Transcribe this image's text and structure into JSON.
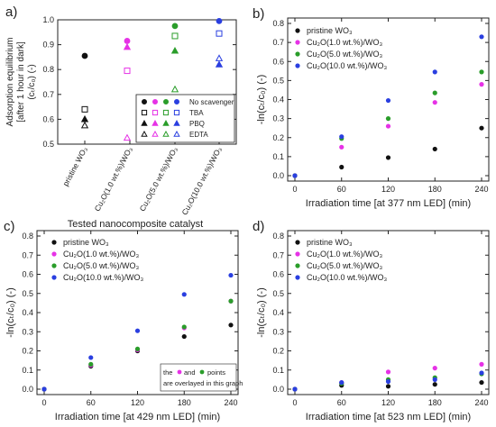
{
  "colors": {
    "black": "#111111",
    "magenta": "#e632e6",
    "green": "#2a9d2a",
    "blue": "#2a3fe0"
  },
  "chart_data": [
    {
      "id": "a",
      "type": "scatter",
      "panel_label": "a)",
      "ylabel_line1": "Adsorption equilibrium",
      "ylabel_line2": "[after 1 hour in dark]",
      "ylabel_line3": "(cₜ/c₀) (-)",
      "xlabel": "Tested nanocomposite catalyst",
      "ylim": [
        0.5,
        1.0
      ],
      "yticks": [
        "0.5",
        "0.6",
        "0.7",
        "0.8",
        "0.9",
        "1.0"
      ],
      "categories": [
        "pristine WO₃",
        "Cu₂O(1.0 wt.%)/WO₃",
        "Cu₂O(5.0 wt.%)/WO₃",
        "Cu₂O(10.0 wt.%)/WO₃"
      ],
      "series": [
        {
          "name": "No scavenger",
          "marker": "circle-filled",
          "values": [
            0.855,
            0.915,
            0.975,
            0.995
          ]
        },
        {
          "name": "TBA",
          "marker": "square-open",
          "values": [
            0.64,
            0.795,
            0.935,
            0.945
          ]
        },
        {
          "name": "PBQ",
          "marker": "triangle-filled",
          "values": [
            0.6,
            0.89,
            0.875,
            0.82
          ]
        },
        {
          "name": "EDTA",
          "marker": "triangle-open",
          "values": [
            0.575,
            0.525,
            0.72,
            0.845
          ]
        }
      ]
    },
    {
      "id": "b",
      "type": "scatter",
      "panel_label": "b)",
      "ylabel": "-ln(cₜ/c₀) (-)",
      "xlabel": "Irradiation time [at 377 nm LED] (min)",
      "xlim": [
        0,
        240
      ],
      "ylim": [
        0,
        0.8
      ],
      "xticks": [
        "0",
        "60",
        "120",
        "180",
        "240"
      ],
      "yticks": [
        "0.0",
        "0.1",
        "0.2",
        "0.3",
        "0.4",
        "0.5",
        "0.6",
        "0.7",
        "0.8"
      ],
      "x": [
        0,
        60,
        120,
        180,
        240
      ],
      "series": [
        {
          "name": "pristine WO₃",
          "values": [
            0,
            0.045,
            0.095,
            0.14,
            0.25
          ]
        },
        {
          "name": "Cu₂O(1.0 wt.%)/WO₃",
          "values": [
            0,
            0.15,
            0.26,
            0.385,
            0.48
          ]
        },
        {
          "name": "Cu₂O(5.0 wt.%)/WO₃",
          "values": [
            0,
            0.195,
            0.3,
            0.435,
            0.545
          ]
        },
        {
          "name": "Cu₂O(10.0 wt.%)/WO₃",
          "values": [
            0,
            0.205,
            0.395,
            0.545,
            0.73
          ]
        }
      ]
    },
    {
      "id": "c",
      "type": "scatter",
      "panel_label": "c)",
      "ylabel": "-ln(cₜ/c₀) (-)",
      "xlabel": "Irradiation time [at 429 nm LED] (min)",
      "xlim": [
        0,
        240
      ],
      "ylim": [
        0,
        0.8
      ],
      "xticks": [
        "0",
        "60",
        "120",
        "180",
        "240"
      ],
      "yticks": [
        "0.0",
        "0.1",
        "0.2",
        "0.3",
        "0.4",
        "0.5",
        "0.6",
        "0.7",
        "0.8"
      ],
      "x": [
        0,
        60,
        120,
        180,
        240
      ],
      "series": [
        {
          "name": "pristine WO₃",
          "values": [
            0,
            0.12,
            0.2,
            0.275,
            0.335
          ]
        },
        {
          "name": "Cu₂O(1.0 wt.%)/WO₃",
          "values": [
            0,
            0.125,
            0.205,
            0.32,
            0.46
          ]
        },
        {
          "name": "Cu₂O(5.0 wt.%)/WO₃",
          "values": [
            0,
            0.13,
            0.21,
            0.325,
            0.46
          ]
        },
        {
          "name": "Cu₂O(10.0 wt.%)/WO₃",
          "values": [
            0,
            0.165,
            0.305,
            0.495,
            0.595
          ]
        }
      ],
      "note_parts": [
        "the",
        "and",
        "points",
        "are overlayed in this graph"
      ]
    },
    {
      "id": "d",
      "type": "scatter",
      "panel_label": "d)",
      "ylabel": "-ln(cₜ/c₀) (-)",
      "xlabel": "Irradiation time [at 523 nm LED] (min)",
      "xlim": [
        0,
        240
      ],
      "ylim": [
        0,
        0.8
      ],
      "xticks": [
        "0",
        "60",
        "120",
        "180",
        "240"
      ],
      "yticks": [
        "0.0",
        "0.1",
        "0.2",
        "0.3",
        "0.4",
        "0.5",
        "0.6",
        "0.7",
        "0.8"
      ],
      "x": [
        0,
        60,
        120,
        180,
        240
      ],
      "series": [
        {
          "name": "pristine WO₃",
          "values": [
            0,
            0.02,
            0.015,
            0.025,
            0.035
          ]
        },
        {
          "name": "Cu₂O(1.0 wt.%)/WO₃",
          "values": [
            0,
            0.035,
            0.09,
            0.11,
            0.13
          ]
        },
        {
          "name": "Cu₂O(5.0 wt.%)/WO₃",
          "values": [
            0,
            0.03,
            0.05,
            0.06,
            0.08
          ]
        },
        {
          "name": "Cu₂O(10.0 wt.%)/WO₃",
          "values": [
            0,
            0.035,
            0.04,
            0.05,
            0.085
          ]
        }
      ]
    }
  ]
}
